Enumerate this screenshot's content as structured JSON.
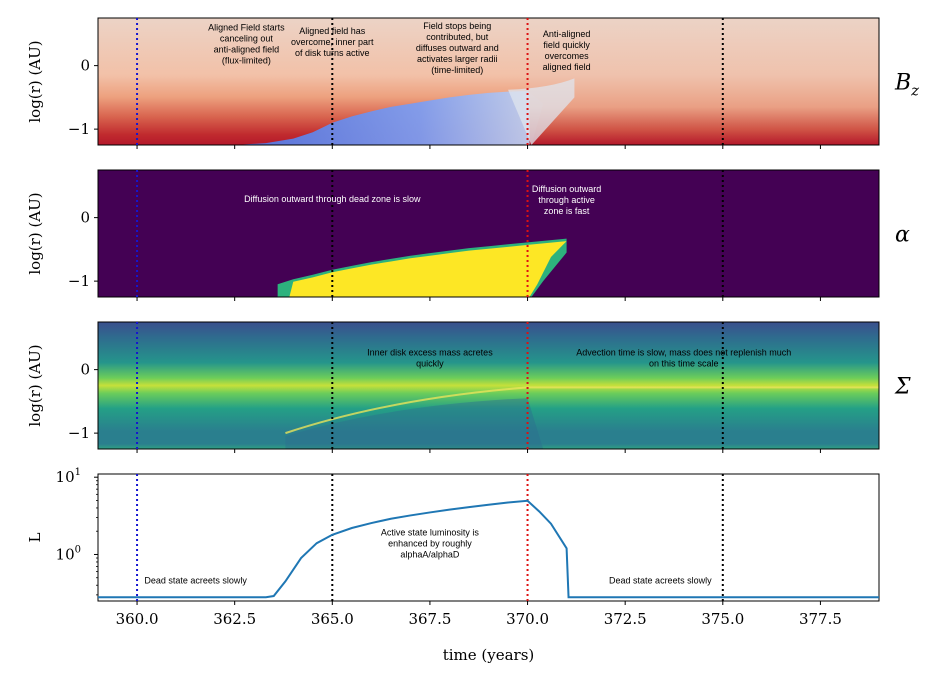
{
  "chart_data": {
    "type": "line",
    "x_label": "time (years)",
    "x_ticks": [
      "360.0",
      "362.5",
      "365.0",
      "367.5",
      "370.0",
      "372.5",
      "375.0",
      "377.5"
    ],
    "x_tick_values": [
      360,
      362.5,
      365,
      367.5,
      370,
      372.5,
      375,
      377.5
    ],
    "xlim": [
      359,
      379
    ],
    "vlines": [
      {
        "x": 360,
        "color": "#1515d0"
      },
      {
        "x": 365,
        "color": "#000000"
      },
      {
        "x": 370,
        "color": "#dd1111"
      },
      {
        "x": 375,
        "color": "#000000"
      }
    ],
    "panels": [
      {
        "symbol": "B",
        "symbol_sub": "z",
        "ylabel": "log(r) (AU)",
        "y_ticks": [
          "0",
          "−1"
        ],
        "y_tick_values": [
          0,
          -1
        ],
        "ylim": [
          -1.25,
          0.75
        ],
        "kind": "heatmap",
        "annotations": [
          {
            "x": 362.8,
            "y": 0.55,
            "color": "#000000",
            "lines": [
              "Aligned Field starts",
              "canceling out",
              "anti-aligned field",
              "(flux-limited)"
            ]
          },
          {
            "x": 365.0,
            "y": 0.5,
            "color": "#000000",
            "lines": [
              "Aligned field has",
              "overcome, inner part",
              "of disk turns active"
            ]
          },
          {
            "x": 368.2,
            "y": 0.58,
            "color": "#000000",
            "lines": [
              "Field stops being",
              "contributed, but",
              "diffuses outward and",
              "activates larger radii",
              "(time-limited)"
            ]
          },
          {
            "x": 371.0,
            "y": 0.45,
            "color": "#000000",
            "lines": [
              "Anti-aligned",
              "field quickly",
              "overcomes",
              "aligned field"
            ]
          }
        ]
      },
      {
        "symbol": "α",
        "symbol_sub": "",
        "ylabel": "log(r) (AU)",
        "y_ticks": [
          "0",
          "−1"
        ],
        "y_tick_values": [
          0,
          -1
        ],
        "ylim": [
          -1.25,
          0.75
        ],
        "kind": "heatmap",
        "annotations": [
          {
            "x": 365.0,
            "y": 0.25,
            "color": "#ffffff",
            "lines": [
              "Diffusion outward through dead zone is slow"
            ]
          },
          {
            "x": 371.0,
            "y": 0.4,
            "color": "#ffffff",
            "lines": [
              "Diffusion outward",
              "through active",
              "zone is fast"
            ]
          }
        ]
      },
      {
        "symbol": "Σ",
        "symbol_sub": "",
        "ylabel": "log(r) (AU)",
        "y_ticks": [
          "0",
          "−1"
        ],
        "y_tick_values": [
          0,
          -1
        ],
        "ylim": [
          -1.25,
          0.75
        ],
        "kind": "heatmap",
        "annotations": [
          {
            "x": 367.5,
            "y": 0.22,
            "color": "#000000",
            "lines": [
              "Inner disk excess mass acretes",
              "quickly"
            ]
          },
          {
            "x": 374.0,
            "y": 0.22,
            "color": "#000000",
            "lines": [
              "Advection time is slow, mass does not replenish much",
              "on this time scale"
            ]
          }
        ]
      },
      {
        "symbol": "",
        "symbol_sub": "",
        "ylabel": "L",
        "y_ticks": [
          "10",
          "10"
        ],
        "y_tick_exps": [
          "1",
          "0"
        ],
        "y_tick_values": [
          10,
          1
        ],
        "y_scale": "log",
        "ylim": [
          0.25,
          11
        ],
        "kind": "line",
        "line_color": "#1f77b4",
        "series": [
          {
            "x": [
              359,
              363.3,
              363.5,
              363.8,
              364.2,
              364.6,
              365,
              365.5,
              366,
              366.5,
              367,
              367.5,
              368,
              368.5,
              369,
              369.5,
              370,
              370.3,
              370.6,
              371,
              371.05,
              372,
              375,
              379
            ],
            "y": [
              0.28,
              0.28,
              0.29,
              0.45,
              0.9,
              1.4,
              1.8,
              2.2,
              2.55,
              2.9,
              3.2,
              3.5,
              3.8,
              4.1,
              4.4,
              4.7,
              4.95,
              3.6,
              2.5,
              1.2,
              0.28,
              0.28,
              0.28,
              0.28
            ]
          }
        ],
        "annotations": [
          {
            "x": 361.5,
            "y": 0.42,
            "color": "#000000",
            "lines": [
              "Dead state acreets slowly"
            ]
          },
          {
            "x": 367.5,
            "y": 1.75,
            "color": "#000000",
            "lines": [
              "Active state luminosity is",
              "enhanced by roughly",
              "alphaA/alphaD"
            ]
          },
          {
            "x": 373.4,
            "y": 0.42,
            "color": "#000000",
            "lines": [
              "Dead state acreets slowly"
            ]
          }
        ]
      }
    ]
  }
}
